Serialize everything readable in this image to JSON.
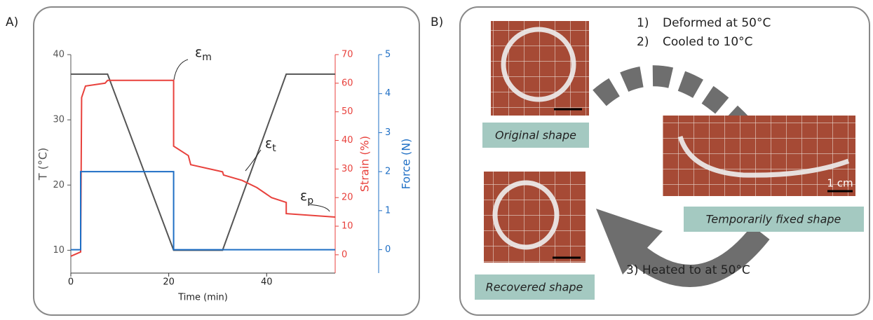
{
  "chart_data": {
    "type": "line",
    "panel_label": "A)",
    "xlabel": "Time (min)",
    "xlim": [
      0,
      54
    ],
    "xticks": [
      0,
      20,
      40
    ],
    "ylabel": "T (°C)",
    "ylim": [
      6.5,
      40
    ],
    "yticks": [
      10,
      20,
      30,
      40
    ],
    "ycolor": "#555555",
    "y2label": "Strain (%)",
    "y2lim": [
      -6.4,
      70
    ],
    "y2ticks": [
      0,
      10,
      20,
      30,
      40,
      50,
      60,
      70
    ],
    "y2color": "#e8413c",
    "y3label": "Force (N)",
    "y3lim": [
      -0.6,
      5
    ],
    "y3ticks": [
      0,
      1,
      2,
      3,
      4,
      5
    ],
    "y3color": "#1f6fc5",
    "series": [
      {
        "axis": "y",
        "color": "#555555",
        "x": [
          0,
          7.5,
          21,
          31,
          44,
          54
        ],
        "values": [
          37,
          37,
          10,
          10,
          37,
          37
        ]
      },
      {
        "axis": "y2",
        "color": "#e8413c",
        "x": [
          0,
          2,
          2.2,
          3,
          7,
          7.5,
          21,
          21,
          24,
          24.5,
          31,
          31.2,
          35,
          38,
          41,
          44,
          44,
          54
        ],
        "values": [
          -0.5,
          1,
          55,
          59,
          60,
          61,
          61,
          38,
          34.7,
          31.5,
          29,
          27.9,
          26,
          23.5,
          20,
          18.3,
          14.4,
          13.2
        ]
      },
      {
        "axis": "y3",
        "color": "#1f6fc5",
        "x": [
          0,
          2,
          2,
          21,
          21,
          54
        ],
        "values": [
          0,
          0,
          2,
          2,
          0,
          0
        ]
      }
    ],
    "annotations": [
      {
        "symbol": "ε",
        "subscript": "m"
      },
      {
        "symbol": "ε",
        "subscript": "t"
      },
      {
        "symbol": "ε",
        "subscript": "p"
      }
    ]
  },
  "diagram": {
    "panel_label": "B)",
    "steps": [
      {
        "number": "1)",
        "text": "Deformed at 50°C"
      },
      {
        "number": "2)",
        "text": "Cooled to 10°C"
      }
    ],
    "return_step": "3) Heated to at 50°C",
    "shapes": {
      "original": "Original shape",
      "temporary": "Temporarily fixed shape",
      "recovered": "Recovered shape"
    },
    "scale_label": "1 cm"
  }
}
